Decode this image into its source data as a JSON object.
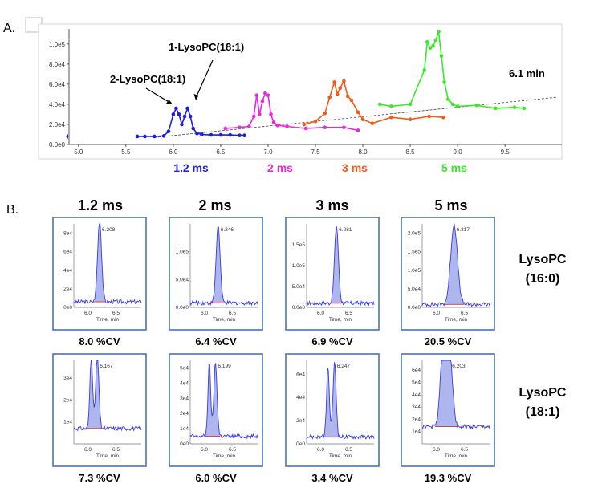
{
  "panel_a": {
    "label": "A.",
    "chart_data": {
      "type": "line",
      "x_range": [
        4.9,
        10.1
      ],
      "y_range": [
        0,
        115000
      ],
      "x_ticks": [
        "5.0",
        "5.5",
        "6.0",
        "6.5",
        "7.0",
        "7.5",
        "8.0",
        "8.5",
        "9.0",
        "9.5"
      ],
      "y_ticks": [
        "0.0e0",
        "2.0e4",
        "4.0e4",
        "6.0e4",
        "8.0e4",
        "1.0e5"
      ],
      "series": [
        {
          "name": "1.2 ms",
          "color": "#1f1fd6",
          "x": [
            5.62,
            5.7,
            5.8,
            5.9,
            5.95,
            6.0,
            6.03,
            6.06,
            6.09,
            6.12,
            6.15,
            6.18,
            6.21,
            6.25,
            6.3,
            6.4,
            6.5,
            6.6,
            6.7,
            6.75
          ],
          "y": [
            8000,
            8000,
            8000,
            8500,
            13000,
            30000,
            36000,
            30000,
            20000,
            28000,
            36000,
            28000,
            16000,
            11000,
            10000,
            9500,
            9500,
            9500,
            9000,
            9000
          ]
        },
        {
          "name": "2 ms",
          "color": "#e82ad8",
          "x": [
            6.55,
            6.7,
            6.8,
            6.85,
            6.88,
            6.91,
            6.94,
            6.97,
            7.0,
            7.03,
            7.06,
            7.1,
            7.2,
            7.4,
            7.6,
            7.8,
            7.95
          ],
          "y": [
            16000,
            17000,
            18000,
            28000,
            49000,
            30000,
            43000,
            51000,
            49000,
            30000,
            22000,
            19000,
            18000,
            16000,
            17000,
            17000,
            14000
          ]
        },
        {
          "name": "3 ms",
          "color": "#f25b16",
          "x": [
            7.38,
            7.5,
            7.6,
            7.65,
            7.7,
            7.73,
            7.76,
            7.8,
            7.84,
            7.88,
            7.95,
            8.0,
            8.1,
            8.3,
            8.5,
            8.7,
            8.85
          ],
          "y": [
            20000,
            23000,
            31000,
            47000,
            62000,
            50000,
            56000,
            63000,
            48000,
            44000,
            32000,
            25000,
            21000,
            27000,
            25000,
            28000,
            27000
          ]
        },
        {
          "name": "5 ms",
          "color": "#38e82a",
          "x": [
            8.18,
            8.3,
            8.5,
            8.65,
            8.68,
            8.71,
            8.74,
            8.77,
            8.8,
            8.83,
            8.86,
            8.9,
            8.95,
            9.0,
            9.2,
            9.4,
            9.6,
            9.7
          ],
          "y": [
            40000,
            38000,
            40000,
            74000,
            102000,
            96000,
            98000,
            104000,
            112000,
            88000,
            62000,
            45000,
            40000,
            38000,
            39000,
            36000,
            37000,
            36000
          ]
        }
      ],
      "trend_line": {
        "x": [
          5.8,
          10.05
        ],
        "y": [
          7000,
          47000
        ]
      },
      "annotations": [
        {
          "text": "1-LysoPC(18:1)",
          "x": 6.6,
          "y": 104000
        },
        {
          "text": "2-LysoPC(18:1)",
          "x": 5.75,
          "y": 67000
        },
        {
          "text": "6.1 min",
          "x": 9.75,
          "y": 72000
        }
      ],
      "bottom_labels": [
        {
          "text": "1.2 ms",
          "color": "#1f1fd6"
        },
        {
          "text": "2 ms",
          "color": "#e82ad8"
        },
        {
          "text": "3 ms",
          "color": "#f25b16"
        },
        {
          "text": "5 ms",
          "color": "#38e82a"
        }
      ]
    }
  },
  "panel_b": {
    "label": "B.",
    "column_headers": [
      "1.2 ms",
      "2 ms",
      "3 ms",
      "5 ms"
    ],
    "row_labels": [
      [
        "LysoPC",
        "(16:0)"
      ],
      [
        "LysoPC",
        "(18:1)"
      ]
    ],
    "x_axis_label": "Time, min",
    "x_ticks": [
      "6.0",
      "6.5"
    ],
    "chart_data": [
      {
        "type": "area",
        "row": 0,
        "col": 0,
        "peak_label": "6.208",
        "y_ticks": [
          "0e0",
          "2e4",
          "4e4",
          "6e4",
          "8e4"
        ],
        "ymax": 90000,
        "peaks": [
          {
            "x": 6.208,
            "h": 88000,
            "w": 0.05
          }
        ],
        "baseline": 6000,
        "cv": "8.0 %CV"
      },
      {
        "type": "area",
        "row": 0,
        "col": 1,
        "peak_label": "6.246",
        "y_ticks": [
          "0.0e0",
          "5.0e4",
          "1.0e5"
        ],
        "ymax": 150000,
        "peaks": [
          {
            "x": 6.246,
            "h": 140000,
            "w": 0.05
          }
        ],
        "baseline": 8000,
        "cv": "6.4 %CV"
      },
      {
        "type": "area",
        "row": 0,
        "col": 2,
        "peak_label": "6.281",
        "y_ticks": [
          "0.0e0",
          "5.0e4",
          "1.0e5",
          "1.5e5"
        ],
        "ymax": 200000,
        "peaks": [
          {
            "x": 6.281,
            "h": 185000,
            "w": 0.05
          }
        ],
        "baseline": 10000,
        "cv": "6.9 %CV"
      },
      {
        "type": "area",
        "row": 0,
        "col": 3,
        "peak_label": "6.317",
        "y_ticks": [
          "0.0e0",
          "5.0e4",
          "1.0e5",
          "1.5e5",
          "2.0e5"
        ],
        "ymax": 225000,
        "peaks": [
          {
            "x": 6.317,
            "h": 215000,
            "w": 0.085
          }
        ],
        "baseline": 8000,
        "cv": "20.5 %CV"
      },
      {
        "type": "area",
        "row": 1,
        "col": 0,
        "peak_label": "6.167",
        "y_ticks": [
          "1e4",
          "2e4",
          "3e4"
        ],
        "ymax": 38000,
        "ymin": 0,
        "peaks": [
          {
            "x": 6.06,
            "h": 33000,
            "w": 0.035
          },
          {
            "x": 6.167,
            "h": 33500,
            "w": 0.04
          }
        ],
        "baseline": 7000,
        "cv": "7.3 %CV"
      },
      {
        "type": "area",
        "row": 1,
        "col": 1,
        "peak_label": "6.199",
        "y_ticks": [
          "0e0",
          "1e4",
          "2e4",
          "3e4",
          "4e4",
          "5e4"
        ],
        "ymax": 55000,
        "peaks": [
          {
            "x": 6.09,
            "h": 48000,
            "w": 0.035
          },
          {
            "x": 6.199,
            "h": 48500,
            "w": 0.04
          }
        ],
        "baseline": 5000,
        "cv": "6.0 %CV"
      },
      {
        "type": "area",
        "row": 1,
        "col": 2,
        "peak_label": "6.247",
        "y_ticks": [
          "0e0",
          "2e4",
          "4e4",
          "6e4"
        ],
        "ymax": 72000,
        "peaks": [
          {
            "x": 6.13,
            "h": 60000,
            "w": 0.035
          },
          {
            "x": 6.247,
            "h": 64000,
            "w": 0.04
          }
        ],
        "baseline": 6000,
        "cv": "3.4 %CV"
      },
      {
        "type": "area",
        "row": 1,
        "col": 3,
        "peak_label": "6.203",
        "y_ticks": [
          "1e4",
          "2e4",
          "3e4",
          "4e4",
          "5e4",
          "6e4"
        ],
        "ymax": 68000,
        "peaks": [
          {
            "x": 6.12,
            "h": 62000,
            "w": 0.07
          },
          {
            "x": 6.24,
            "h": 60000,
            "w": 0.07
          }
        ],
        "baseline": 14000,
        "cv": "19.3 %CV"
      }
    ]
  }
}
